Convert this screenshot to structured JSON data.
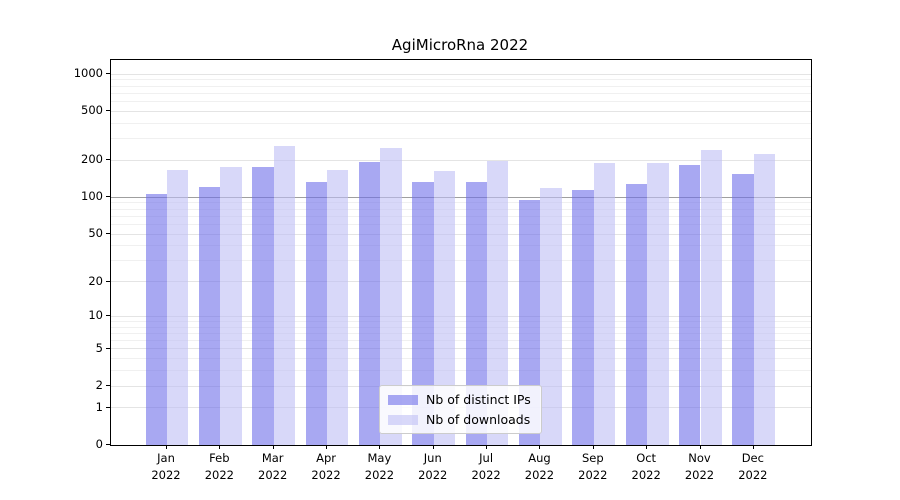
{
  "title": "AgiMicroRna 2022",
  "chart_data": {
    "type": "bar",
    "title": "AgiMicroRna 2022",
    "categories": [
      "Jan 2022",
      "Feb 2022",
      "Mar 2022",
      "Apr 2022",
      "May 2022",
      "Jun 2022",
      "Jul 2022",
      "Aug 2022",
      "Sep 2022",
      "Oct 2022",
      "Nov 2022",
      "Dec 2022"
    ],
    "series": [
      {
        "name": "Nb of distinct IPs",
        "color": "rgba(110,110,233,0.6)",
        "values": [
          107,
          122,
          178,
          133,
          196,
          134,
          134,
          96,
          114,
          129,
          182,
          155
        ]
      },
      {
        "name": "Nb of downloads",
        "color": "rgba(190,190,245,0.6)",
        "values": [
          168,
          178,
          261,
          168,
          251,
          165,
          197,
          119,
          189,
          190,
          244,
          227
        ]
      }
    ],
    "xlabel": "",
    "ylabel": "",
    "yscale": "log1p",
    "ylim": [
      0,
      1300
    ],
    "yticks": [
      0,
      1,
      2,
      5,
      10,
      20,
      50,
      100,
      200,
      500,
      1000
    ],
    "y_minor_gridlines": [
      3,
      4,
      6,
      7,
      8,
      9,
      30,
      40,
      60,
      70,
      80,
      90,
      300,
      400,
      600,
      700,
      800,
      900
    ],
    "y_emphasis_gridline": 100,
    "grid": true,
    "legend_position": "lower center"
  },
  "colors": {
    "bar_distinct_ips": "rgba(110,110,233,0.6)",
    "bar_downloads": "rgba(190,190,245,0.6)",
    "grid_major": "#e4e4e4",
    "grid_minor": "#f0f0f0",
    "grid_emphasis": "#9f9f9f",
    "spine": "#000000",
    "legend_border": "#cccccc"
  }
}
